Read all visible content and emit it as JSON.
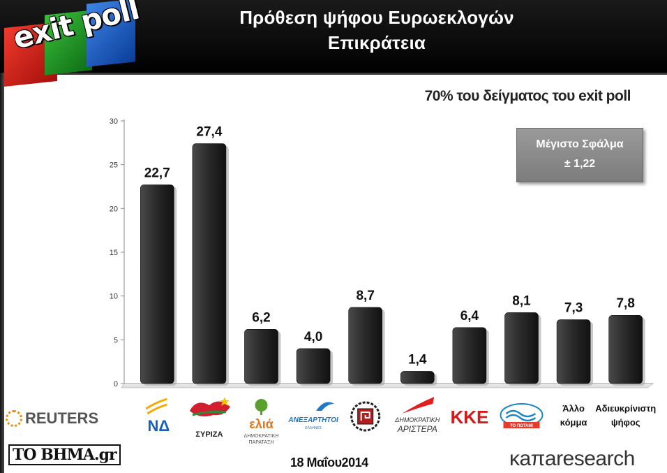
{
  "header": {
    "title_line1": "Πρόθεση ψήφου Ευρωεκλογών",
    "title_line2": "Επικράτεια",
    "logo_text": "exit poll"
  },
  "subtitle": "70% του δείγματος του exit poll",
  "error_box": {
    "label": "Μέγιστο Σφάλμα",
    "value": "± 1,22"
  },
  "footer": {
    "date": "18 Μαΐου2014",
    "reuters": "REUTERS",
    "tovima": "ΤΟ ΒΗΜΑ.gr",
    "kapa": "κaπaresearch"
  },
  "colors": {
    "bar": "#2a2a2a",
    "header_bg": "#000000",
    "text_primary": "#111111"
  },
  "chart_data": {
    "type": "bar",
    "categories": [
      "ΝΔ",
      "ΣΥΡΙΖΑ",
      "ΕΛΙΑ ΔΗΜΟΚΡΑΤΙΚΗ ΠΑΡΑΤΑΞΗ",
      "ΑΝΕΞΑΡΤΗΤΟΙ ΕΛΛΗΝΕΣ",
      "Χρυσή Αυγή",
      "ΔΗΜΟΚΡΑΤΙΚΗ ΑΡΙΣΤΕΡΑ",
      "ΚΚΕ",
      "ΤΟ ΠΟΤΑΜΙ",
      "Άλλο κόμμα",
      "Αδιευκρίνιστη ψήφος"
    ],
    "category_labels": [
      {
        "type": "logo",
        "icon": "nd-logo",
        "texts": [
          "ΝΔ"
        ]
      },
      {
        "type": "logo",
        "icon": "syriza-logo",
        "texts": [
          "ΣΥΡΙΖΑ"
        ]
      },
      {
        "type": "logo",
        "icon": "elia-logo",
        "texts": [
          "ελιά",
          "ΔΗΜΟΚΡΑΤΙΚΗ",
          "ΠΑΡΑΤΑΞΗ"
        ]
      },
      {
        "type": "logo",
        "icon": "anel-logo",
        "texts": [
          "ΑΝΕΞΑΡΤΗΤΟΙ",
          "ΕΛΛΗΝΕΣ"
        ]
      },
      {
        "type": "logo",
        "icon": "golden-dawn-logo",
        "texts": []
      },
      {
        "type": "logo",
        "icon": "dimar-logo",
        "texts": [
          "ΔΗΜΟΚΡΑΤΙΚΗ",
          "ΑΡΙΣΤΕΡΑ"
        ]
      },
      {
        "type": "logo",
        "icon": "kke-logo",
        "texts": [
          "ΚΚΕ"
        ]
      },
      {
        "type": "logo",
        "icon": "potami-logo",
        "texts": [
          "ΤΟ ΠΟΤΑΜΙ"
        ]
      },
      {
        "type": "text",
        "texts": [
          "Άλλο",
          "κόμμα"
        ]
      },
      {
        "type": "text",
        "texts": [
          "Αδιευκρίνιστη",
          "ψήφος"
        ]
      }
    ],
    "values": [
      22.7,
      27.4,
      6.2,
      4.0,
      8.7,
      1.4,
      6.4,
      8.1,
      7.3,
      7.8
    ],
    "value_labels": [
      "22,7",
      "27,4",
      "6,2",
      "4,0",
      "8,7",
      "1,4",
      "6,4",
      "8,1",
      "7,3",
      "7,8"
    ],
    "yticks": [
      0,
      5,
      10,
      15,
      20,
      25,
      30
    ],
    "ylim": [
      0,
      30
    ],
    "grid": false,
    "title": "",
    "xlabel": "",
    "ylabel": ""
  }
}
